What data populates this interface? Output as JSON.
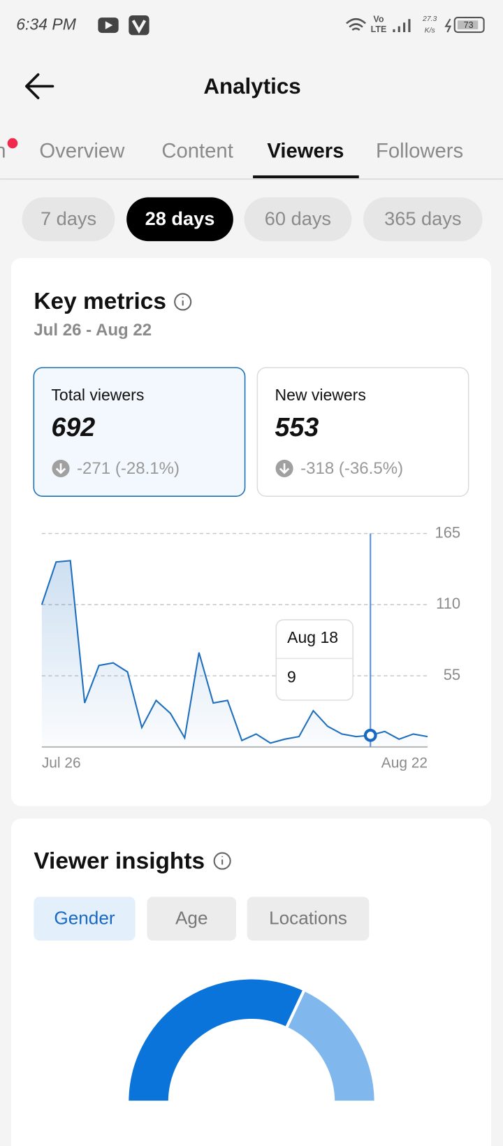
{
  "status_bar": {
    "time": "6:34 PM",
    "network_top": "Vo",
    "network_bottom": "LTE",
    "speed_top": "27.3",
    "speed_bottom": "K/s",
    "battery": "73"
  },
  "header": {
    "title": "Analytics"
  },
  "tabs": {
    "items": [
      "n",
      "Overview",
      "Content",
      "Viewers",
      "Followers"
    ],
    "active": 3
  },
  "ranges": {
    "items": [
      "7 days",
      "28 days",
      "60 days",
      "365 days"
    ],
    "active": 1
  },
  "key_metrics": {
    "title": "Key metrics",
    "date_range": "Jul 26 - Aug 22",
    "cards": [
      {
        "label": "Total viewers",
        "value": "692",
        "change": "-271 (-28.1%)"
      },
      {
        "label": "New viewers",
        "value": "553",
        "change": "-318 (-36.5%)"
      }
    ]
  },
  "viewer_insights": {
    "title": "Viewer insights",
    "tabs": [
      "Gender",
      "Age",
      "Locations"
    ],
    "active": 0
  },
  "chart_data": [
    {
      "type": "line",
      "color": "#1f6fbf",
      "x": [
        "Jul 26",
        null,
        null,
        null,
        null,
        null,
        null,
        null,
        null,
        null,
        null,
        null,
        null,
        null,
        null,
        null,
        null,
        null,
        null,
        null,
        null,
        null,
        null,
        null,
        null,
        null,
        null,
        "Aug 22"
      ],
      "values": [
        110,
        143,
        144,
        34,
        63,
        65,
        58,
        15,
        36,
        26,
        7,
        73,
        34,
        36,
        5,
        10,
        3,
        6,
        8,
        28,
        16,
        10,
        8,
        9,
        12,
        6,
        10,
        8
      ],
      "ylim": [
        0,
        165
      ],
      "yticks": [
        55,
        110,
        165
      ],
      "grid": true,
      "highlight": 23,
      "tooltip_label": "Aug 18"
    },
    {
      "type": "half-donut",
      "values": [
        64,
        36
      ],
      "colors": [
        "#0a74da",
        "#80b8ee"
      ]
    }
  ]
}
